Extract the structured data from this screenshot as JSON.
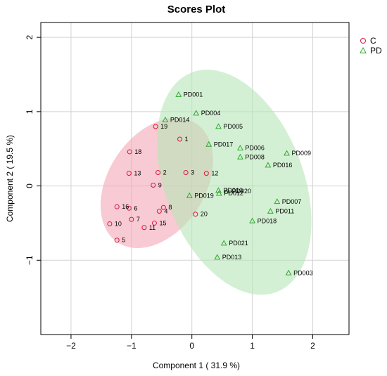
{
  "chart_data": {
    "type": "scatter",
    "title": "Scores Plot",
    "xlabel": "Component 1 ( 31.9 %)",
    "ylabel": "Component 2 ( 19.5 %)",
    "xlim": [
      -2.5,
      2.6
    ],
    "ylim": [
      -2.0,
      2.2
    ],
    "xticks": [
      -2,
      -1,
      0,
      1,
      2
    ],
    "yticks": [
      -1,
      0,
      1,
      2
    ],
    "grid": true,
    "legend_position": "top-right",
    "series": [
      {
        "name": "C",
        "marker": "circle",
        "color": "#dc143c",
        "ellipse_color": "#f4a6b5",
        "points": [
          {
            "label": "1",
            "x": -0.2,
            "y": 0.63
          },
          {
            "label": "2",
            "x": -0.56,
            "y": 0.18
          },
          {
            "label": "3",
            "x": -0.1,
            "y": 0.18
          },
          {
            "label": "4",
            "x": -0.54,
            "y": -0.34
          },
          {
            "label": "5",
            "x": -1.24,
            "y": -0.73
          },
          {
            "label": "6",
            "x": -1.04,
            "y": -0.3
          },
          {
            "label": "7",
            "x": -1.0,
            "y": -0.45
          },
          {
            "label": "8",
            "x": -0.47,
            "y": -0.29
          },
          {
            "label": "9",
            "x": -0.64,
            "y": 0.01
          },
          {
            "label": "10",
            "x": -1.36,
            "y": -0.51
          },
          {
            "label": "11",
            "x": -0.79,
            "y": -0.56
          },
          {
            "label": "12",
            "x": 0.24,
            "y": 0.17
          },
          {
            "label": "13",
            "x": -1.04,
            "y": 0.17
          },
          {
            "label": "15",
            "x": -0.62,
            "y": -0.5
          },
          {
            "label": "16",
            "x": -1.24,
            "y": -0.28
          },
          {
            "label": "18",
            "x": -1.03,
            "y": 0.46
          },
          {
            "label": "19",
            "x": -0.6,
            "y": 0.8
          },
          {
            "label": "20",
            "x": 0.06,
            "y": -0.38
          }
        ]
      },
      {
        "name": "PD",
        "marker": "triangle",
        "color": "#2eaa2e",
        "ellipse_color": "#b8e6b8",
        "points": [
          {
            "label": "PD001",
            "x": -0.22,
            "y": 1.23
          },
          {
            "label": "PD004",
            "x": 0.07,
            "y": 0.98
          },
          {
            "label": "PD014",
            "x": -0.44,
            "y": 0.89
          },
          {
            "label": "PD005",
            "x": 0.44,
            "y": 0.8
          },
          {
            "label": "PD017",
            "x": 0.28,
            "y": 0.56
          },
          {
            "label": "PD006",
            "x": 0.8,
            "y": 0.51
          },
          {
            "label": "PD008",
            "x": 0.8,
            "y": 0.39
          },
          {
            "label": "PD009",
            "x": 1.57,
            "y": 0.44
          },
          {
            "label": "PD016",
            "x": 1.26,
            "y": 0.28
          },
          {
            "label": "PD010",
            "x": 0.44,
            "y": -0.06
          },
          {
            "label": "PD012",
            "x": 0.45,
            "y": -0.1
          },
          {
            "label": "PD019",
            "x": -0.04,
            "y": -0.13
          },
          {
            "label": "PD020",
            "x": 0.58,
            "y": -0.07
          },
          {
            "label": "PD007",
            "x": 1.41,
            "y": -0.21
          },
          {
            "label": "PD011",
            "x": 1.3,
            "y": -0.34
          },
          {
            "label": "PD018",
            "x": 1.0,
            "y": -0.47
          },
          {
            "label": "PD021",
            "x": 0.53,
            "y": -0.77
          },
          {
            "label": "PD013",
            "x": 0.42,
            "y": -0.96
          },
          {
            "label": "PD003",
            "x": 1.6,
            "y": -1.17
          }
        ]
      }
    ],
    "ellipses": [
      {
        "series": "C",
        "cx": -0.58,
        "cy": 0.04,
        "rx": 1.05,
        "ry": 0.73,
        "angle_deg": 40
      },
      {
        "series": "PD",
        "cx": 0.7,
        "cy": 0.05,
        "rx": 1.65,
        "ry": 1.1,
        "angle_deg": -58
      }
    ]
  }
}
